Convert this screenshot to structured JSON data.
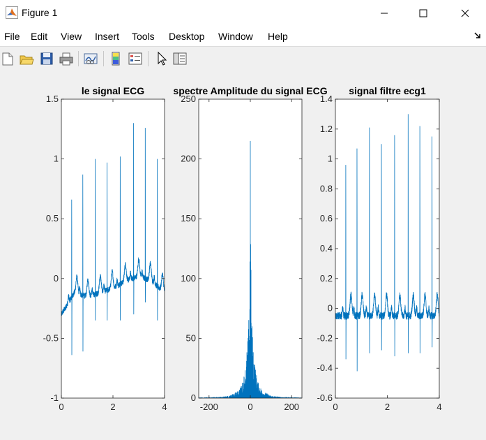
{
  "window": {
    "title": "Figure 1"
  },
  "menu": [
    "File",
    "Edit",
    "View",
    "Insert",
    "Tools",
    "Desktop",
    "Window",
    "Help"
  ],
  "toolbar": [
    "new-figure-icon",
    "open-file-icon",
    "save-icon",
    "print-icon",
    "link-plot-icon",
    "colorbar-icon",
    "legend-icon",
    "pointer-icon",
    "property-editor-icon"
  ],
  "colors": {
    "trace": "#0072bd",
    "axes_bg": "#ffffff",
    "figure_bg": "#f0f0f0"
  },
  "chart_data": [
    {
      "type": "line",
      "title": "le signal ECG",
      "xlim": [
        0,
        4
      ],
      "ylim": [
        -1,
        1.5
      ],
      "xticks": [
        0,
        2,
        4
      ],
      "yticks": [
        -1,
        -0.5,
        0,
        0.5,
        1,
        1.5
      ],
      "ytick_labels": [
        "-1",
        "-0.5",
        "0",
        "0.5",
        "1",
        "1.5"
      ],
      "xtick_labels": [
        "0",
        "2",
        "4"
      ],
      "baseline": [
        [
          0,
          -0.3
        ],
        [
          0.5,
          -0.12
        ],
        [
          1.0,
          -0.15
        ],
        [
          1.5,
          -0.12
        ],
        [
          2.0,
          -0.08
        ],
        [
          2.5,
          -0.02
        ],
        [
          3.0,
          0.02
        ],
        [
          3.5,
          -0.02
        ],
        [
          4.0,
          -0.12
        ]
      ],
      "r_peaks": [
        {
          "x": 0.4,
          "peak": 0.66,
          "trough": -0.64
        },
        {
          "x": 0.83,
          "peak": 0.87,
          "trough": -0.61
        },
        {
          "x": 1.31,
          "peak": 1.0,
          "trough": -0.35
        },
        {
          "x": 1.77,
          "peak": 0.97,
          "trough": -0.35
        },
        {
          "x": 2.28,
          "peak": 1.02,
          "trough": -0.35
        },
        {
          "x": 2.8,
          "peak": 1.3,
          "trough": -0.3
        },
        {
          "x": 3.25,
          "peak": 1.26,
          "trough": -0.2
        },
        {
          "x": 3.72,
          "peak": 1.0,
          "trough": -0.35
        }
      ]
    },
    {
      "type": "line",
      "title": "spectre Amplitude du signal ECG",
      "xlim": [
        -250,
        250
      ],
      "ylim": [
        0,
        250
      ],
      "xticks": [
        -200,
        0,
        200
      ],
      "yticks": [
        0,
        50,
        100,
        150,
        200,
        250
      ],
      "ytick_labels": [
        "0",
        "50",
        "100",
        "150",
        "200",
        "250"
      ],
      "xtick_labels": [
        "-200",
        "0",
        "200"
      ],
      "center_peak": 215,
      "envelope": [
        [
          0,
          215
        ],
        [
          2,
          140
        ],
        [
          4,
          95
        ],
        [
          6,
          75
        ],
        [
          10,
          55
        ],
        [
          15,
          45
        ],
        [
          20,
          32
        ],
        [
          30,
          20
        ],
        [
          40,
          12
        ],
        [
          60,
          6
        ],
        [
          100,
          2
        ],
        [
          150,
          1
        ],
        [
          250,
          0.5
        ]
      ]
    },
    {
      "type": "line",
      "title": "signal filtre ecg1",
      "xlim": [
        0,
        4
      ],
      "ylim": [
        -0.6,
        1.4
      ],
      "xticks": [
        0,
        2,
        4
      ],
      "yticks": [
        -0.6,
        -0.4,
        -0.2,
        0,
        0.2,
        0.4,
        0.6,
        0.8,
        1,
        1.2,
        1.4
      ],
      "ytick_labels": [
        "-0.6",
        "-0.4",
        "-0.2",
        "0",
        "0.2",
        "0.4",
        "0.6",
        "0.8",
        "1",
        "1.2",
        "1.4"
      ],
      "xtick_labels": [
        "0",
        "2",
        "4"
      ],
      "baseline": [
        [
          0,
          -0.05
        ],
        [
          4.0,
          -0.05
        ]
      ],
      "r_peaks": [
        {
          "x": 0.4,
          "peak": 0.96,
          "trough": -0.34
        },
        {
          "x": 0.83,
          "peak": 1.07,
          "trough": -0.42
        },
        {
          "x": 1.31,
          "peak": 1.21,
          "trough": -0.3
        },
        {
          "x": 1.77,
          "peak": 1.1,
          "trough": -0.28
        },
        {
          "x": 2.28,
          "peak": 1.16,
          "trough": -0.32
        },
        {
          "x": 2.8,
          "peak": 1.3,
          "trough": -0.3
        },
        {
          "x": 3.25,
          "peak": 1.22,
          "trough": -0.3
        },
        {
          "x": 3.72,
          "peak": 1.15,
          "trough": -0.26
        }
      ]
    }
  ]
}
